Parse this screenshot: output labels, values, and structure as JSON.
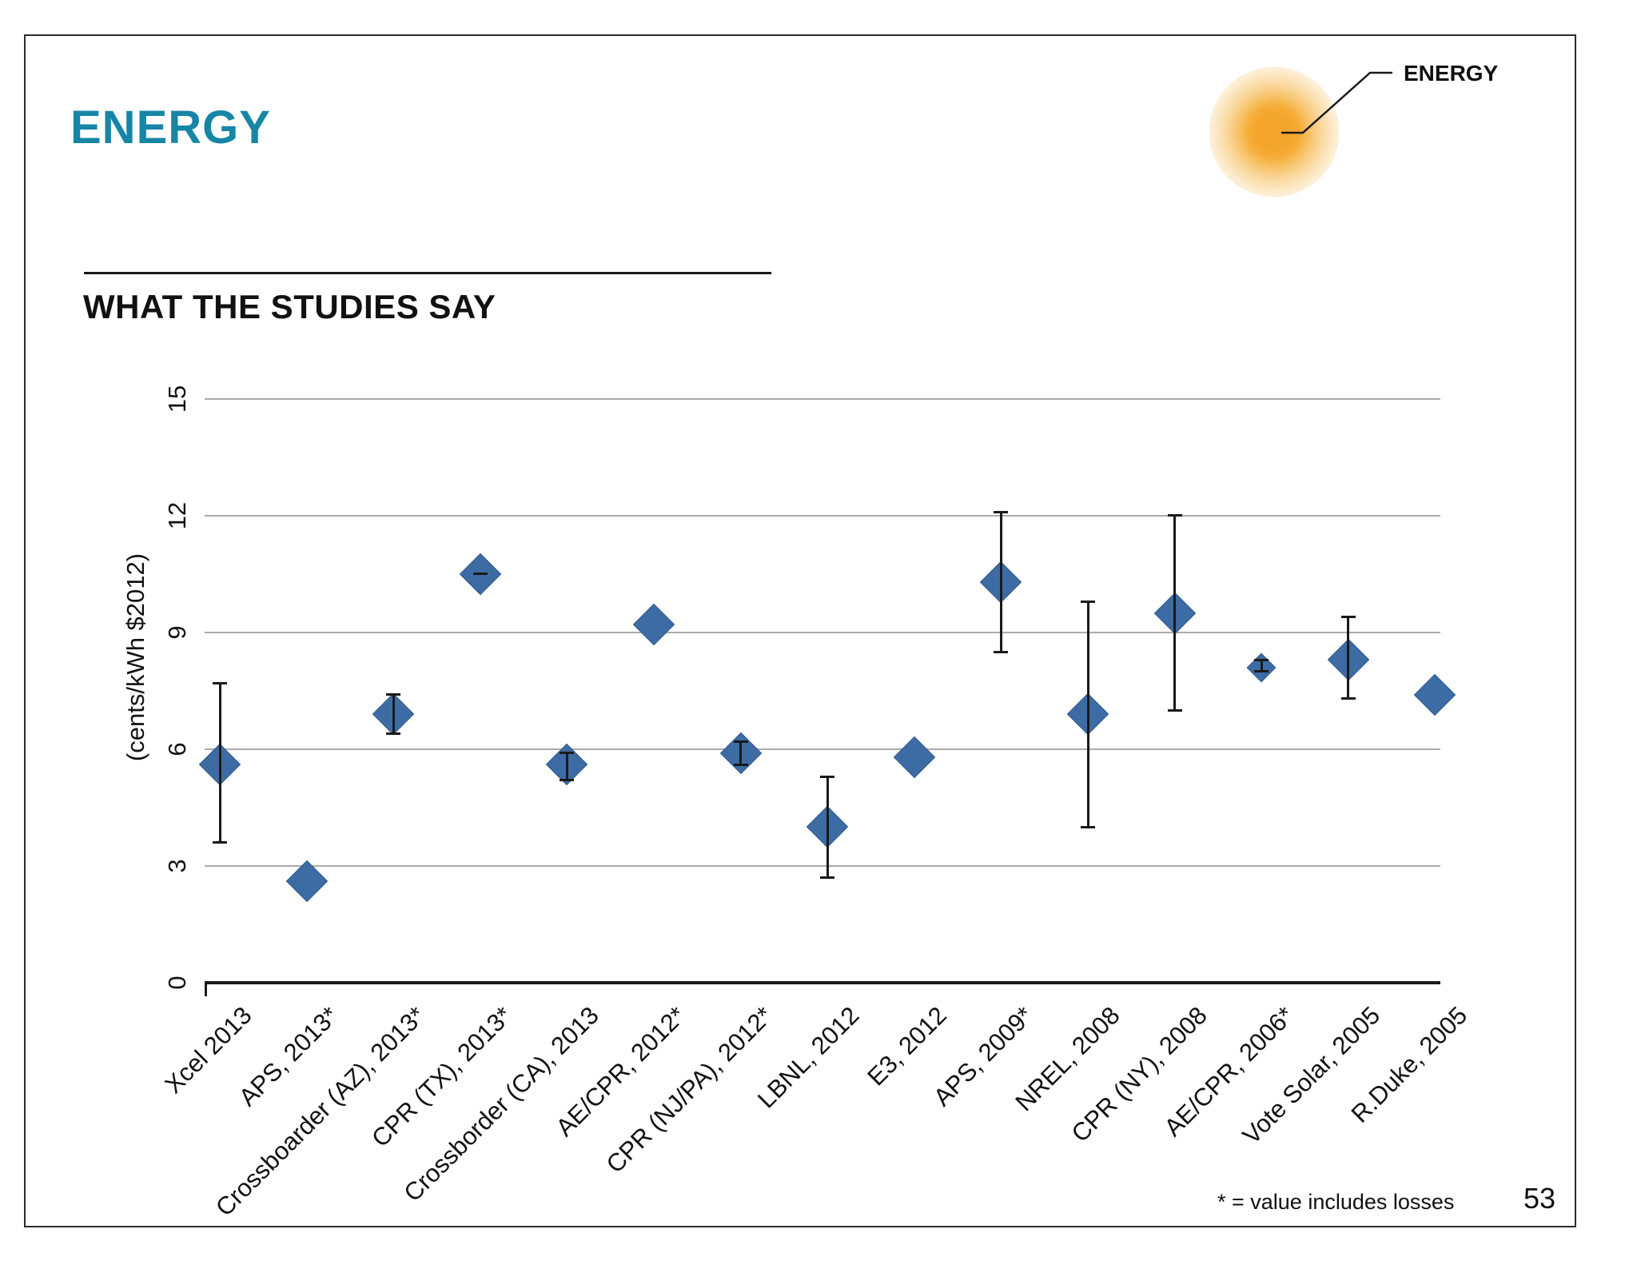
{
  "slide": {
    "title": "ENERGY",
    "heading": "WHAT THE STUDIES SAY",
    "sun_label": "ENERGY",
    "footnote": "* = value includes losses",
    "page_number": "53"
  },
  "colors": {
    "title_teal": "#1786A6",
    "marker_blue": "#3D6CA5",
    "marker_edge": "#2E598C",
    "gridline_gray": "#ABABAB",
    "axis_black": "#1A1A1A",
    "sun_rings_outer_to_inner": [
      "#FDF1DC",
      "#FBE4BC",
      "#F9D595",
      "#F7C268",
      "#F5AD37",
      "#F4A52B"
    ]
  },
  "chart_data": {
    "type": "scatter",
    "marker": "diamond",
    "title": "",
    "xlabel": "",
    "ylabel": "(cents/kWh $2012)",
    "ylim": [
      0,
      15
    ],
    "yticks": [
      0,
      3,
      6,
      9,
      12,
      15
    ],
    "grid": true,
    "error_bars": true,
    "points": [
      {
        "label": "Xcel 2013",
        "value": 5.6,
        "lo": 3.6,
        "hi": 7.7,
        "small": false
      },
      {
        "label": "APS, 2013*",
        "value": 2.6,
        "lo": null,
        "hi": null,
        "small": false
      },
      {
        "label": "Crossboarder (AZ), 2013*",
        "value": 6.9,
        "lo": 6.4,
        "hi": 7.4,
        "small": false
      },
      {
        "label": "CPR (TX), 2013*",
        "value": 10.5,
        "lo": 10.5,
        "hi": 10.5,
        "small": false
      },
      {
        "label": "Crossborder (CA), 2013",
        "value": 5.6,
        "lo": 5.2,
        "hi": 5.9,
        "small": false
      },
      {
        "label": "AE/CPR, 2012*",
        "value": 9.2,
        "lo": null,
        "hi": null,
        "small": false
      },
      {
        "label": "CPR (NJ/PA), 2012*",
        "value": 5.9,
        "lo": 5.6,
        "hi": 6.2,
        "small": false
      },
      {
        "label": "LBNL, 2012",
        "value": 4.0,
        "lo": 2.7,
        "hi": 5.3,
        "small": false
      },
      {
        "label": "E3, 2012",
        "value": 5.8,
        "lo": null,
        "hi": null,
        "small": false
      },
      {
        "label": "APS, 2009*",
        "value": 10.3,
        "lo": 8.5,
        "hi": 12.1,
        "small": false
      },
      {
        "label": "NREL, 2008",
        "value": 6.9,
        "lo": 4.0,
        "hi": 9.8,
        "small": false
      },
      {
        "label": "CPR (NY), 2008",
        "value": 9.5,
        "lo": 7.0,
        "hi": 12.0,
        "small": false
      },
      {
        "label": "AE/CPR, 2006*",
        "value": 8.1,
        "lo": 8.0,
        "hi": 8.3,
        "small": true
      },
      {
        "label": "Vote Solar, 2005",
        "value": 8.3,
        "lo": 7.3,
        "hi": 9.4,
        "small": false
      },
      {
        "label": "R.Duke, 2005",
        "value": 7.4,
        "lo": null,
        "hi": null,
        "small": false
      }
    ]
  }
}
